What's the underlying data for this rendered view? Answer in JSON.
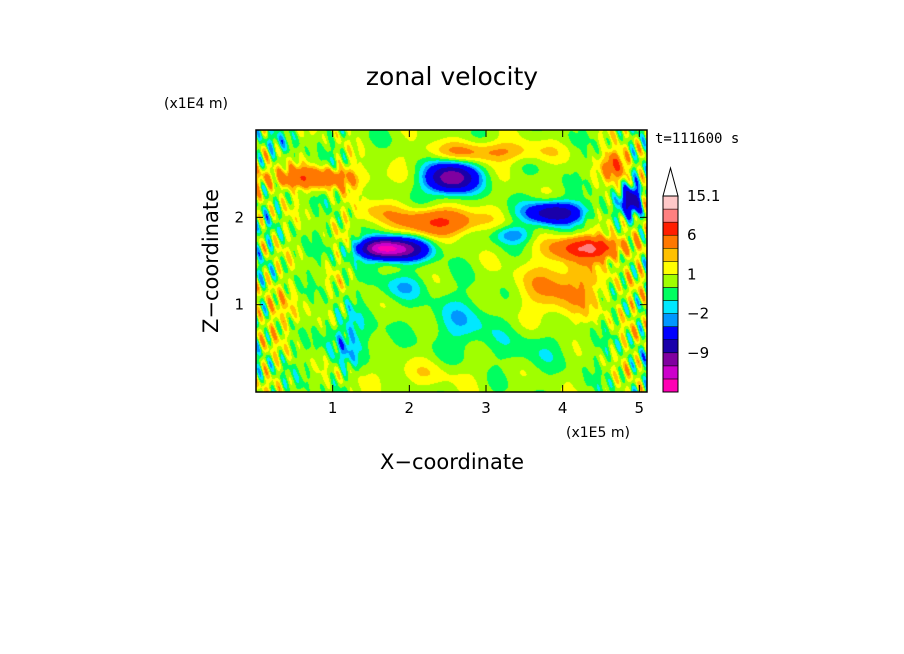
{
  "chart_data": {
    "type": "heatmap",
    "title": "zonal velocity",
    "xlabel": "X−coordinate",
    "ylabel": "Z−coordinate",
    "x_multiplier": "(x1E5 m)",
    "y_multiplier": "(x1E4 m)",
    "time_label": "t=111600 s",
    "xlim": [
      0,
      5.1
    ],
    "ylim": [
      0,
      3.0
    ],
    "x_ticks": [
      1,
      2,
      3,
      4,
      5
    ],
    "x_tick_labels": [
      "1",
      "2",
      "3",
      "4",
      "5"
    ],
    "y_ticks": [
      1,
      2
    ],
    "y_tick_labels": [
      "1",
      "2"
    ],
    "colorbar": {
      "max_extend_arrow": true,
      "levels": [
        -15,
        -12,
        -9,
        -6,
        -3,
        -2,
        -1,
        0,
        1,
        2,
        3,
        6,
        9,
        12,
        15.1
      ],
      "labels": [
        {
          "value": 15.1,
          "text": "15.1"
        },
        {
          "value": 6,
          "text": "6"
        },
        {
          "value": 1,
          "text": "1"
        },
        {
          "value": -2,
          "text": "−2"
        },
        {
          "value": -9,
          "text": "−9"
        }
      ],
      "colors": [
        "#ff00b4",
        "#cc00cc",
        "#8000a0",
        "#1a00aa",
        "#0000ff",
        "#0096ff",
        "#00e8ff",
        "#00ff60",
        "#a0ff00",
        "#ffff00",
        "#ffc000",
        "#ff7800",
        "#ff1e00",
        "#ff8080",
        "#ffc8c8"
      ]
    },
    "features": [
      {
        "x": 2.55,
        "z": 2.45,
        "value": -12,
        "sx": 0.3,
        "sz": 0.16
      },
      {
        "x": 1.85,
        "z": 1.63,
        "value": -12,
        "sx": 0.35,
        "sz": 0.12
      },
      {
        "x": 3.9,
        "z": 2.05,
        "value": -9,
        "sx": 0.35,
        "sz": 0.12
      },
      {
        "x": 1.6,
        "z": 1.65,
        "value": -9,
        "sx": 0.25,
        "sz": 0.1
      },
      {
        "x": 2.4,
        "z": 1.95,
        "value": 6,
        "sx": 0.5,
        "sz": 0.14
      },
      {
        "x": 0.7,
        "z": 2.45,
        "value": 5,
        "sx": 0.7,
        "sz": 0.12
      },
      {
        "x": 4.35,
        "z": 1.65,
        "value": 9,
        "sx": 0.4,
        "sz": 0.12
      },
      {
        "x": 4.0,
        "z": 1.2,
        "value": 3,
        "sx": 0.55,
        "sz": 0.35
      },
      {
        "x": 3.0,
        "z": 2.75,
        "value": 3,
        "sx": 0.8,
        "sz": 0.12
      },
      {
        "x": 1.55,
        "z": 2.05,
        "value": 2,
        "sx": 0.3,
        "sz": 0.14
      },
      {
        "x": 2.7,
        "z": 0.8,
        "value": -2,
        "sx": 0.4,
        "sz": 0.3
      },
      {
        "x": 3.6,
        "z": 0.5,
        "value": -1,
        "sx": 0.5,
        "sz": 0.25
      },
      {
        "x": 1.2,
        "z": 0.6,
        "value": -2,
        "sx": 0.35,
        "sz": 0.3
      },
      {
        "x": 1.9,
        "z": 1.2,
        "value": -2,
        "sx": 0.3,
        "sz": 0.15
      },
      {
        "x": 0.35,
        "z": 0.9,
        "value": 1,
        "sx": 0.4,
        "sz": 0.3
      },
      {
        "x": 2.1,
        "z": 0.2,
        "value": 1,
        "sx": 0.8,
        "sz": 0.15
      },
      {
        "x": 4.9,
        "z": 2.2,
        "value": -9,
        "sx": 0.12,
        "sz": 0.15
      },
      {
        "x": 4.7,
        "z": 2.6,
        "value": 6,
        "sx": 0.15,
        "sz": 0.15
      },
      {
        "x": 0.2,
        "z": 2.85,
        "value": -1,
        "sx": 0.3,
        "sz": 0.1
      },
      {
        "x": 3.35,
        "z": 1.8,
        "value": -3,
        "sx": 0.25,
        "sz": 0.1
      }
    ]
  }
}
